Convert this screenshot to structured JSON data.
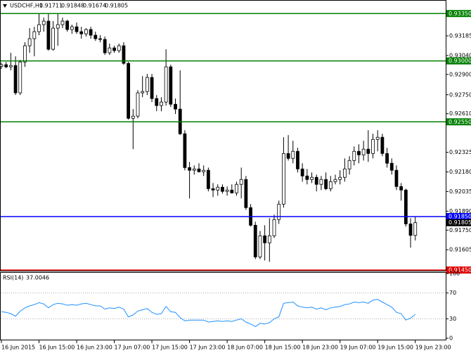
{
  "chart_data": [
    {
      "type": "candlestick",
      "title": "USDCHF,H1",
      "categories": [
        "16 Jun 2015",
        null,
        null,
        null,
        null,
        null,
        null,
        null,
        "16 Jun 15:00",
        null,
        null,
        null,
        null,
        null,
        null,
        null,
        "16 Jun 23:00",
        null,
        null,
        null,
        null,
        null,
        null,
        null,
        "17 Jun 07:00",
        null,
        null,
        null,
        null,
        null,
        null,
        null,
        "17 Jun 15:00",
        null,
        null,
        null,
        null,
        null,
        null,
        null,
        "17 Jun 23:00",
        null,
        null,
        null,
        null,
        null,
        null,
        null,
        "18 Jun 07:00",
        null,
        null,
        null,
        null,
        null,
        null,
        null,
        "18 Jun 15:00",
        null,
        null,
        null,
        null,
        null,
        null,
        null,
        "18 Jun 23:00",
        null,
        null,
        null,
        null,
        null,
        null,
        null,
        "19 Jun 07:00",
        null,
        null,
        null,
        null,
        null,
        null,
        null,
        "19 Jun 15:00",
        null,
        null,
        null,
        null,
        null,
        null,
        null,
        "19 Jun 23:00"
      ],
      "open": [
        0.9296,
        0.92972,
        0.92956,
        0.92966,
        0.92764,
        0.92992,
        0.93112,
        0.93164,
        0.93216,
        0.93268,
        0.93294,
        0.93086,
        0.93242,
        0.93268,
        0.93294,
        0.93232,
        0.93252,
        0.93216,
        0.932,
        0.93232,
        0.9319,
        0.93164,
        0.93159,
        0.9306,
        0.93096,
        0.93076,
        0.93112,
        0.92982,
        0.92576,
        0.92592,
        0.92764,
        0.92774,
        0.92878,
        0.92722,
        0.9267,
        0.92696,
        0.92956,
        0.9268,
        0.92644,
        0.92462,
        0.92212,
        0.92192,
        0.92202,
        0.92181,
        0.92192,
        0.92056,
        0.92046,
        0.92067,
        0.92036,
        0.92046,
        0.92025,
        0.92088,
        0.92124,
        0.91916,
        0.91786,
        0.91552,
        0.91708,
        0.91656,
        0.91708,
        0.91828,
        0.91942,
        0.92316,
        0.9228,
        0.92332,
        0.92202,
        0.9215,
        0.92124,
        0.9214,
        0.92088,
        0.92124,
        0.92056,
        0.92108,
        0.92124,
        0.9214,
        0.92202,
        0.92264,
        0.92332,
        0.92306,
        0.92348,
        0.92316,
        0.9242,
        0.92436,
        0.92316,
        0.92244,
        0.92192,
        0.92072,
        0.92046,
        0.91796,
        0.91711
      ],
      "high": [
        0.92985,
        0.92992,
        0.9306,
        0.93034,
        0.93008,
        0.93138,
        0.93242,
        0.93252,
        0.93346,
        0.9332,
        0.93346,
        0.93294,
        0.93346,
        0.9332,
        0.93304,
        0.93268,
        0.93284,
        0.93252,
        0.93242,
        0.93252,
        0.93216,
        0.9319,
        0.9318,
        0.93128,
        0.93112,
        0.93128,
        0.93138,
        0.92992,
        0.92644,
        0.92784,
        0.92888,
        0.92904,
        0.92904,
        0.92748,
        0.92732,
        0.93086,
        0.92972,
        0.92722,
        0.9293,
        0.92488,
        0.92254,
        0.92228,
        0.92244,
        0.92228,
        0.92212,
        0.92098,
        0.92088,
        0.92088,
        0.92072,
        0.92088,
        0.92108,
        0.92212,
        0.9215,
        0.91942,
        0.91812,
        0.91744,
        0.91786,
        0.91838,
        0.91864,
        0.91968,
        0.92436,
        0.92452,
        0.9241,
        0.92358,
        0.92244,
        0.92202,
        0.92176,
        0.9216,
        0.9215,
        0.92176,
        0.9215,
        0.9216,
        0.92192,
        0.9228,
        0.92296,
        0.92368,
        0.92384,
        0.9241,
        0.92488,
        0.92462,
        0.92488,
        0.92462,
        0.92358,
        0.9228,
        0.92228,
        0.92098,
        0.92056,
        0.91838,
        0.91848
      ],
      "low": [
        0.9294,
        0.92946,
        0.9293,
        0.92748,
        0.92748,
        0.92956,
        0.9306,
        0.93034,
        0.9319,
        0.93216,
        0.93076,
        0.93076,
        0.93112,
        0.93242,
        0.93216,
        0.932,
        0.932,
        0.93164,
        0.9318,
        0.93164,
        0.93148,
        0.93138,
        0.93044,
        0.93044,
        0.9306,
        0.9306,
        0.92972,
        0.92566,
        0.92348,
        0.92576,
        0.92732,
        0.92748,
        0.92696,
        0.92628,
        0.92628,
        0.9267,
        0.9266,
        0.92608,
        0.92452,
        0.92192,
        0.91984,
        0.9216,
        0.92176,
        0.9215,
        0.92036,
        0.91994,
        0.92004,
        0.9202,
        0.92004,
        0.9202,
        0.92004,
        0.91984,
        0.919,
        0.91776,
        0.91536,
        0.91536,
        0.91526,
        0.91516,
        0.91692,
        0.91796,
        0.91916,
        0.92264,
        0.92244,
        0.92176,
        0.92108,
        0.92088,
        0.92098,
        0.92036,
        0.92046,
        0.92046,
        0.92036,
        0.92088,
        0.92088,
        0.92108,
        0.9216,
        0.92228,
        0.92244,
        0.92264,
        0.92254,
        0.9228,
        0.92332,
        0.92296,
        0.92212,
        0.9216,
        0.92046,
        0.91968,
        0.91776,
        0.9162,
        0.91674
      ],
      "close": [
        0.92972,
        0.92956,
        0.92966,
        0.92764,
        0.92992,
        0.93112,
        0.93164,
        0.93216,
        0.93268,
        0.93294,
        0.93086,
        0.93242,
        0.93268,
        0.93294,
        0.93232,
        0.93252,
        0.93216,
        0.932,
        0.93232,
        0.9319,
        0.93164,
        0.93159,
        0.9306,
        0.93096,
        0.93076,
        0.93112,
        0.92982,
        0.92576,
        0.92592,
        0.92764,
        0.92774,
        0.92878,
        0.92722,
        0.9267,
        0.92696,
        0.92956,
        0.9268,
        0.92644,
        0.92462,
        0.92212,
        0.92192,
        0.92202,
        0.92181,
        0.92192,
        0.92056,
        0.92046,
        0.92067,
        0.92036,
        0.92046,
        0.92025,
        0.92088,
        0.92124,
        0.91916,
        0.91786,
        0.91552,
        0.91708,
        0.91656,
        0.91708,
        0.91828,
        0.91942,
        0.92316,
        0.9228,
        0.92332,
        0.92202,
        0.9215,
        0.92124,
        0.9214,
        0.92088,
        0.92124,
        0.92056,
        0.92108,
        0.92124,
        0.9214,
        0.92202,
        0.92264,
        0.92332,
        0.92306,
        0.92348,
        0.92316,
        0.9242,
        0.92436,
        0.92316,
        0.92244,
        0.92192,
        0.92072,
        0.92046,
        0.91796,
        0.91711,
        0.91805
      ],
      "ylim": [
        0.9145,
        0.9345
      ],
      "yticks": [
        0.93185,
        {
          "value": 0.9304,
          "label": "0.93040"
        },
        {
          "value": 0.929,
          "label": "0.92900"
        },
        {
          "value": 0.9275,
          "label": "0.92750"
        },
        {
          "value": 0.9261,
          "label": "0.92610"
        },
        0.92325,
        {
          "value": 0.9218,
          "label": "0.92180"
        },
        0.92035,
        {
          "value": 0.9189,
          "label": "0.91890"
        },
        {
          "value": 0.9175,
          "label": "0.91750"
        },
        0.91605
      ],
      "levels": [
        {
          "value": 0.9335,
          "label": "0.93350",
          "color": "#008000"
        },
        {
          "value": 0.93,
          "label": "0.93000",
          "color": "#008000"
        },
        {
          "value": 0.9255,
          "label": "0.92550",
          "color": "#008000"
        },
        {
          "value": 0.9185,
          "label": "0.91850",
          "color": "#0000ff"
        },
        {
          "value": 0.9145,
          "label": "0.91450",
          "color": "#e00000"
        }
      ],
      "up_color": "#ffffff",
      "down_color": "#000000"
    },
    {
      "type": "line",
      "name": "RSI(14)",
      "color": "#1e90ff",
      "values": [
        41,
        40,
        38,
        34,
        42,
        47,
        50,
        52,
        55,
        53,
        47,
        52,
        54,
        53,
        51,
        52,
        51,
        53,
        54,
        52,
        50,
        50,
        45,
        47,
        46,
        48,
        45,
        33,
        36,
        42,
        44,
        46,
        40,
        37,
        38,
        49,
        41,
        40,
        32,
        27,
        28,
        28,
        28,
        28,
        25,
        26,
        27,
        26,
        27,
        26,
        28,
        30,
        25,
        22,
        18,
        23,
        22,
        24,
        30,
        33,
        54,
        55,
        56,
        50,
        48,
        47,
        48,
        45,
        47,
        44,
        47,
        48,
        49,
        52,
        53,
        56,
        55,
        56,
        54,
        59,
        60,
        56,
        52,
        48,
        40,
        38,
        28,
        31,
        37.0046
      ],
      "ylim": [
        0,
        100
      ],
      "yticks": [
        100,
        70,
        30,
        0
      ]
    }
  ]
}
